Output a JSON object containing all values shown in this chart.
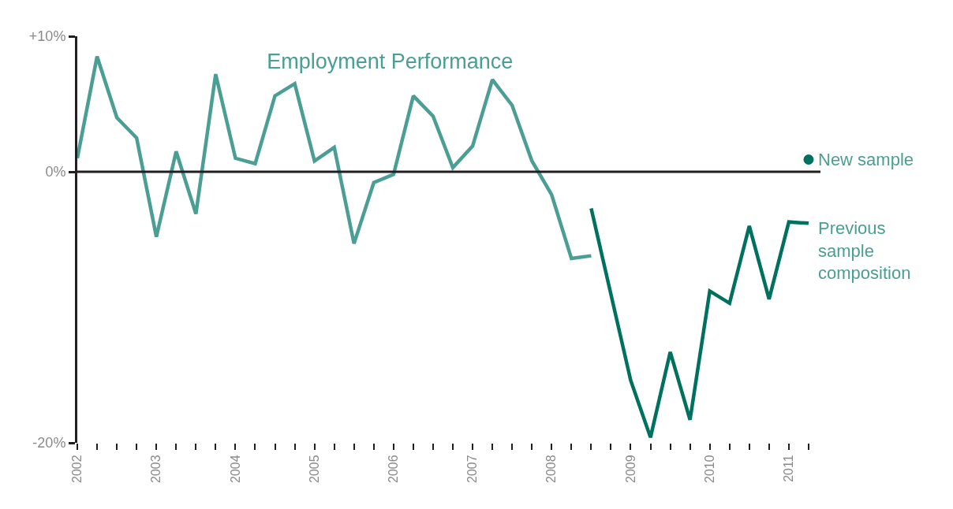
{
  "chart_data": {
    "type": "line",
    "title": "Employment Performance",
    "series": [
      {
        "color": "#4a9e94",
        "x": [
          2002,
          2002.25,
          2002.5,
          2002.75,
          2003,
          2003.25,
          2003.5,
          2003.75,
          2004,
          2004.25,
          2004.5,
          2004.75,
          2005,
          2005.25,
          2005.5,
          2005.75,
          2006,
          2006.25,
          2006.5,
          2006.75,
          2007,
          2007.25,
          2007.5,
          2007.75,
          2008,
          2008.25,
          2008.5
        ],
        "values": [
          1.0,
          8.5,
          4.0,
          2.5,
          -4.8,
          1.5,
          -3.1,
          7.2,
          1.0,
          0.6,
          5.6,
          6.5,
          0.8,
          1.8,
          -5.3,
          -0.8,
          -0.2,
          5.6,
          4.1,
          0.3,
          1.9,
          6.8,
          4.9,
          0.8,
          -1.7,
          -6.4,
          -6.2
        ]
      },
      {
        "name": "Previous sample composition",
        "color": "#00705f",
        "x": [
          2008.5,
          2009,
          2009.25,
          2009.5,
          2009.75,
          2010,
          2010.25,
          2010.5,
          2010.75,
          2011,
          2011.25
        ],
        "values": [
          -2.7,
          -15.4,
          -19.6,
          -13.3,
          -18.3,
          -8.8,
          -9.7,
          -4.0,
          -9.4,
          -3.7,
          -3.8
        ]
      },
      {
        "name": "New sample",
        "type": "scatter",
        "marker": "circle",
        "color": "#00705f",
        "x": [
          2011.25
        ],
        "values": [
          0.9
        ]
      }
    ],
    "xlim": [
      2002,
      2011.4
    ],
    "xticks": [
      2002,
      {
        "value": 2002.25,
        "label": null
      },
      {
        "value": 2002.5,
        "label": null
      },
      {
        "value": 2002.75,
        "label": null
      },
      2003,
      {
        "value": 2003.25,
        "label": null
      },
      {
        "value": 2003.5,
        "label": null
      },
      {
        "value": 2003.75,
        "label": null
      },
      2004,
      {
        "value": 2004.25,
        "label": null
      },
      {
        "value": 2004.5,
        "label": null
      },
      {
        "value": 2004.75,
        "label": null
      },
      2005,
      {
        "value": 2005.25,
        "label": null
      },
      {
        "value": 2005.5,
        "label": null
      },
      {
        "value": 2005.75,
        "label": null
      },
      2006,
      {
        "value": 2006.25,
        "label": null
      },
      {
        "value": 2006.5,
        "label": null
      },
      {
        "value": 2006.75,
        "label": null
      },
      2007,
      {
        "value": 2007.25,
        "label": null
      },
      {
        "value": 2007.5,
        "label": null
      },
      {
        "value": 2007.75,
        "label": null
      },
      2008,
      {
        "value": 2008.25,
        "label": null
      },
      {
        "value": 2008.5,
        "label": null
      },
      {
        "value": 2008.75,
        "label": null
      },
      2009,
      {
        "value": 2009.25,
        "label": null
      },
      {
        "value": 2009.5,
        "label": null
      },
      {
        "value": 2009.75,
        "label": null
      },
      2010,
      {
        "value": 2010.25,
        "label": null
      },
      {
        "value": 2010.5,
        "label": null
      },
      {
        "value": 2010.75,
        "label": null
      },
      2011,
      {
        "value": 2011.25,
        "label": null
      }
    ],
    "ylim": [
      -20,
      10
    ],
    "yticks": [
      {
        "value": 10,
        "label": "+10%"
      },
      {
        "value": 0,
        "label": "0%"
      },
      {
        "value": -20,
        "label": "-20%"
      }
    ],
    "ref_lines": [
      {
        "axis": "y",
        "value": 0,
        "color": "#231f20"
      }
    ],
    "marker": "none",
    "line_style": "solid",
    "grid": false,
    "legend": false
  }
}
